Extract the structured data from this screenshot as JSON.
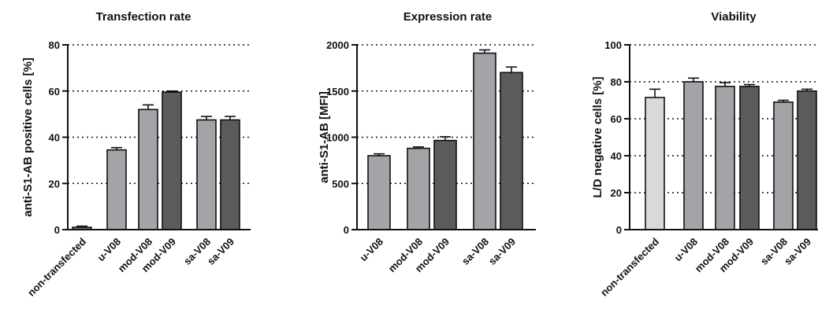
{
  "chart_data": [
    {
      "type": "bar",
      "title": "Transfection rate",
      "ylabel": "anti-S1-AB positive cells [%]",
      "xlabel": "",
      "ylim": [
        0,
        80
      ],
      "yticks": [
        0,
        20,
        40,
        60,
        80
      ],
      "grid": "horizontal-dotted",
      "categories": [
        "non-transfected",
        "u-V08",
        "mod-V08",
        "mod-V09",
        "sa-V08",
        "sa-V09"
      ],
      "values": [
        1,
        34.5,
        52,
        59.5,
        47.5,
        47.5
      ],
      "errors": [
        0.5,
        1,
        2,
        0.5,
        1.5,
        1.5
      ],
      "colors": [
        "#7a7a7a",
        "#a3a3a8",
        "#a3a3a8",
        "#5b5b5b",
        "#a3a3a8",
        "#5b5b5b"
      ]
    },
    {
      "type": "bar",
      "title": "Expression rate",
      "ylabel": "anti-S1-AB [MFI]",
      "xlabel": "",
      "ylim": [
        0,
        2000
      ],
      "yticks": [
        0,
        500,
        1000,
        1500,
        2000
      ],
      "grid": "horizontal-dotted",
      "categories": [
        "u-V08",
        "mod-V08",
        "mod-V09",
        "sa-V08",
        "sa-V09"
      ],
      "values": [
        800,
        880,
        965,
        1910,
        1700
      ],
      "errors": [
        20,
        15,
        40,
        35,
        60
      ],
      "colors": [
        "#a3a3a8",
        "#a3a3a8",
        "#5b5b5b",
        "#a3a3a8",
        "#5b5b5b"
      ]
    },
    {
      "type": "bar",
      "title": "Viability",
      "ylabel": "L/D negative cells [%]",
      "xlabel": "",
      "ylim": [
        0,
        100
      ],
      "yticks": [
        0,
        20,
        40,
        60,
        80,
        100
      ],
      "grid": "horizontal-dotted",
      "categories": [
        "non-transfected",
        "u-V08",
        "mod-V08",
        "mod-V09",
        "sa-V08",
        "sa-V09"
      ],
      "values": [
        71.5,
        80,
        77.5,
        77.5,
        69,
        75
      ],
      "errors": [
        4.5,
        2,
        2,
        1,
        1,
        1
      ],
      "colors": [
        "#d9d9d9",
        "#a3a3a8",
        "#a3a3a8",
        "#5b5b5b",
        "#a3a3a8",
        "#5b5b5b"
      ]
    }
  ]
}
